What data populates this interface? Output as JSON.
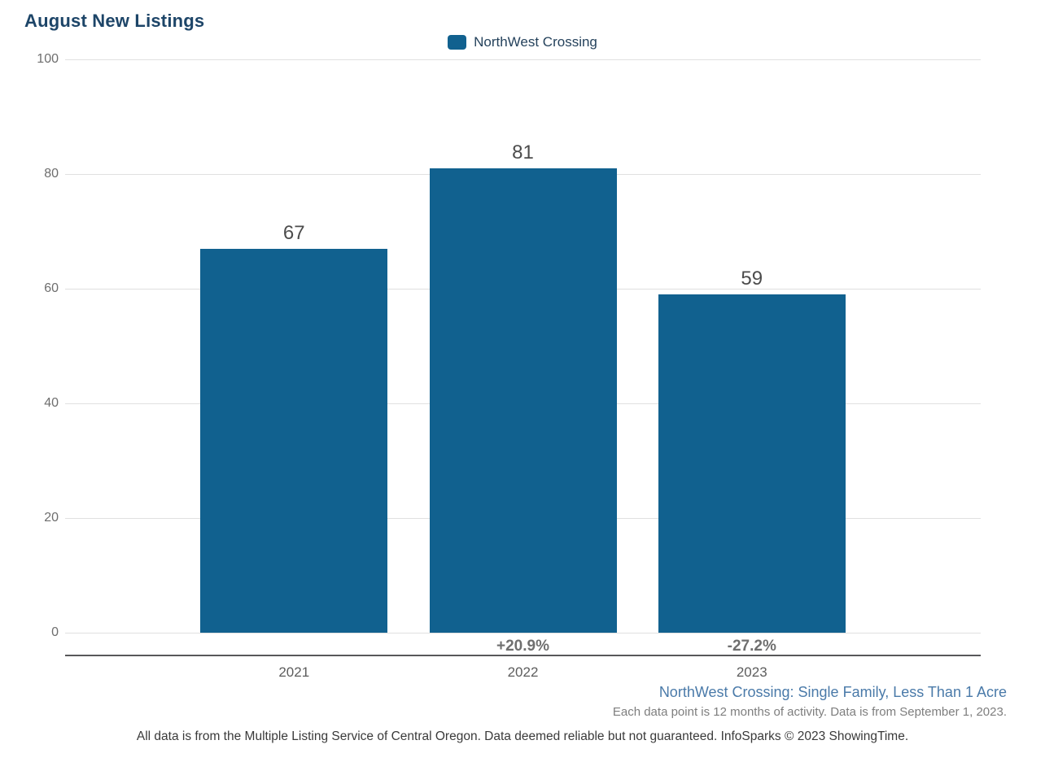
{
  "title": "August New Listings",
  "legend": {
    "label": "NorthWest Crossing"
  },
  "chart_data": {
    "type": "bar",
    "title": "August New Listings",
    "series_name": "NorthWest Crossing",
    "categories": [
      "2021",
      "2022",
      "2023"
    ],
    "values": [
      67,
      81,
      59
    ],
    "pct_change": [
      "",
      "+20.9%",
      "-27.2%"
    ],
    "ylim": [
      0,
      100
    ],
    "y_ticks": [
      100,
      80,
      60,
      40,
      20,
      0
    ],
    "grid": true,
    "legend_position": "top-center",
    "bar_color": "#11618f"
  },
  "annotations": {
    "segment": "NorthWest Crossing: Single Family, Less Than 1 Acre",
    "data_note": "Each data point is 12 months of activity. Data is from September 1, 2023.",
    "disclaimer": "All data is from the Multiple Listing Service of Central Oregon. Data deemed reliable but not guaranteed. InfoSparks © 2023 ShowingTime."
  },
  "colors": {
    "bar": "#11618f",
    "title_text": "#1d4568",
    "segment_note_text": "#4a7aa9",
    "gridline": "#e0e0e0",
    "axis_line": "#58585a"
  }
}
